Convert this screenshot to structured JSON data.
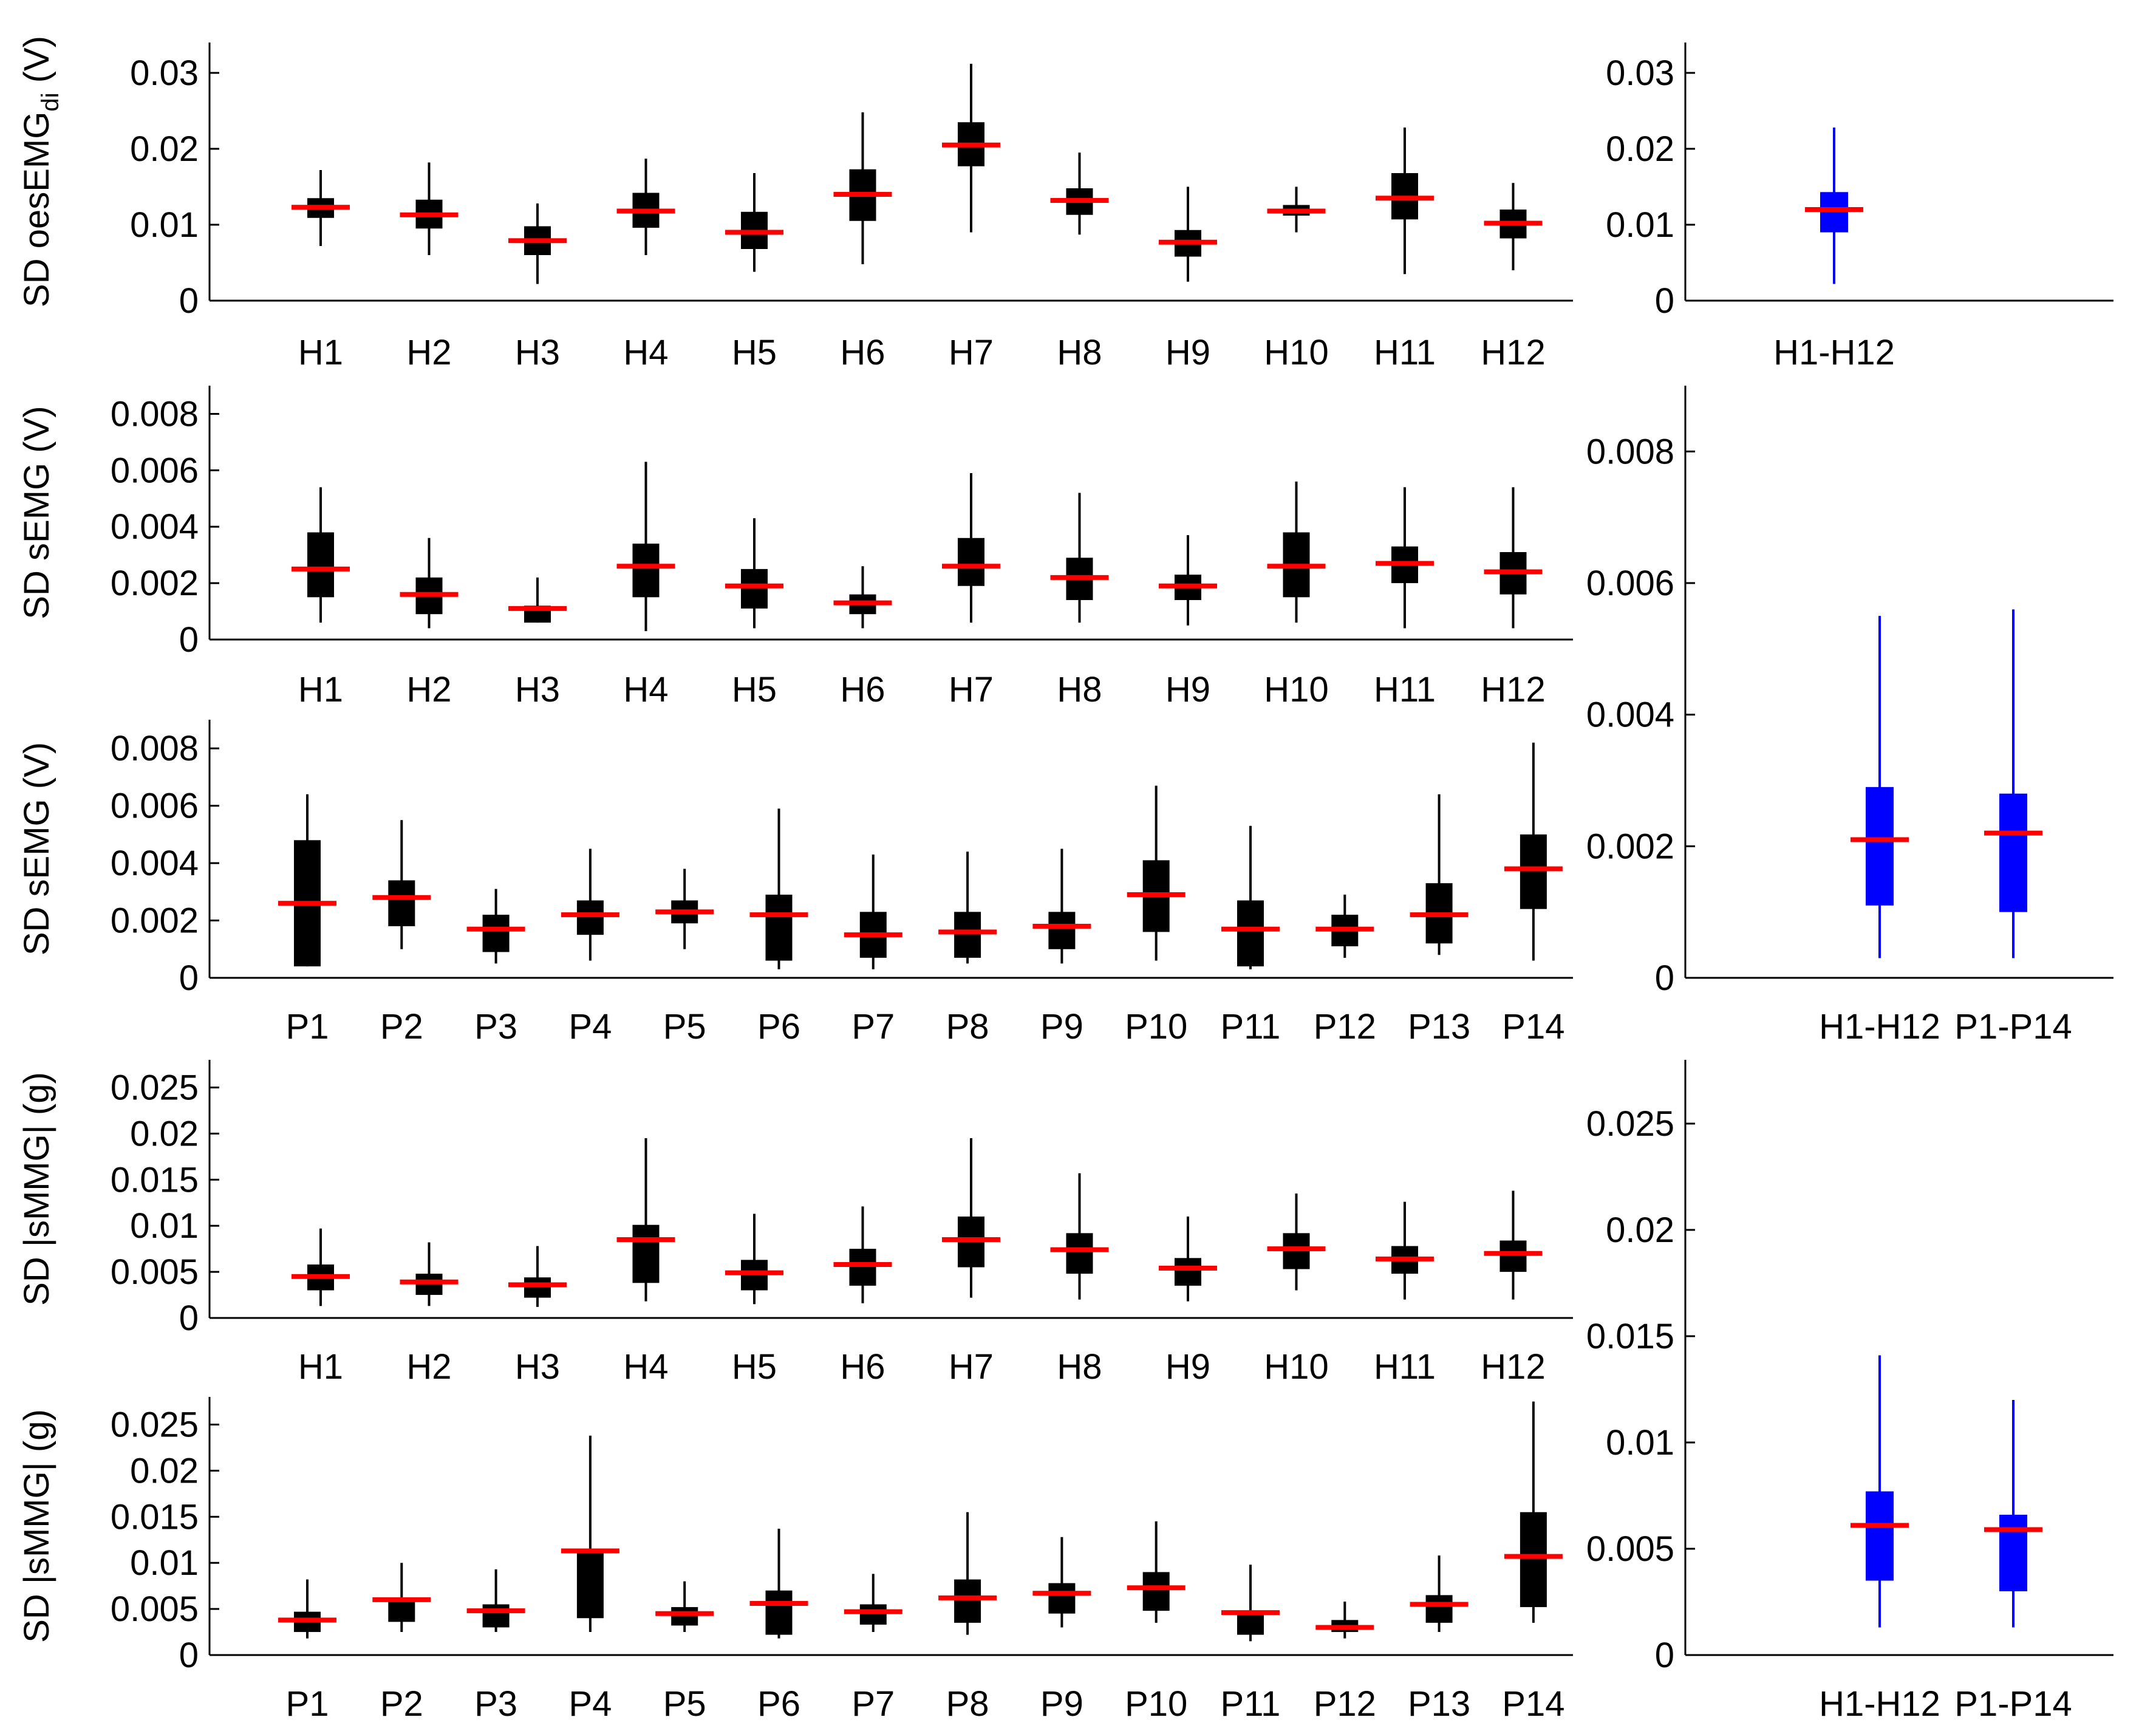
{
  "figure": {
    "description_type": "box-plot-grid",
    "colors": {
      "box": "#000000",
      "summary_box": "#0000ff",
      "median": "#ff0000",
      "axis": "#000000"
    }
  },
  "chart_data": [
    {
      "id": "a-left",
      "type": "box",
      "ylabel": "SD oesEMG",
      "ylabel_sub": "di",
      "ylabel_unit": "(V)",
      "ylim": [
        0,
        0.034
      ],
      "yticks": [
        0,
        0.01,
        0.02,
        0.03
      ],
      "ytick_labels": [
        "0",
        "0.01",
        "0.02",
        "0.03"
      ],
      "color": "#000000",
      "categories": [
        "H1",
        "H2",
        "H3",
        "H4",
        "H5",
        "H6",
        "H7",
        "H8",
        "H9",
        "H10",
        "H11",
        "H12"
      ],
      "boxes": [
        {
          "wlo": 0.0072,
          "q1": 0.0109,
          "med": 0.0123,
          "q3": 0.0135,
          "whi": 0.0172
        },
        {
          "wlo": 0.006,
          "q1": 0.0095,
          "med": 0.0113,
          "q3": 0.0133,
          "whi": 0.0182
        },
        {
          "wlo": 0.0022,
          "q1": 0.006,
          "med": 0.0079,
          "q3": 0.0098,
          "whi": 0.0128
        },
        {
          "wlo": 0.006,
          "q1": 0.0096,
          "med": 0.0118,
          "q3": 0.0142,
          "whi": 0.0187
        },
        {
          "wlo": 0.0038,
          "q1": 0.0068,
          "med": 0.009,
          "q3": 0.0117,
          "whi": 0.0168
        },
        {
          "wlo": 0.0048,
          "q1": 0.0105,
          "med": 0.014,
          "q3": 0.0173,
          "whi": 0.0248
        },
        {
          "wlo": 0.009,
          "q1": 0.0177,
          "med": 0.0205,
          "q3": 0.0235,
          "whi": 0.0312
        },
        {
          "wlo": 0.0087,
          "q1": 0.0113,
          "med": 0.0132,
          "q3": 0.0148,
          "whi": 0.0195
        },
        {
          "wlo": 0.0025,
          "q1": 0.0058,
          "med": 0.0077,
          "q3": 0.0093,
          "whi": 0.015
        },
        {
          "wlo": 0.009,
          "q1": 0.0112,
          "med": 0.0118,
          "q3": 0.0126,
          "whi": 0.015
        },
        {
          "wlo": 0.0035,
          "q1": 0.0107,
          "med": 0.0135,
          "q3": 0.0168,
          "whi": 0.0228
        },
        {
          "wlo": 0.004,
          "q1": 0.0082,
          "med": 0.0102,
          "q3": 0.012,
          "whi": 0.0155
        }
      ]
    },
    {
      "id": "a-right",
      "type": "box",
      "ylim": [
        0,
        0.034
      ],
      "yticks": [
        0,
        0.01,
        0.02,
        0.03
      ],
      "ytick_labels": [
        "0",
        "0.01",
        "0.02",
        "0.03"
      ],
      "color": "#0000ff",
      "categories": [
        "H1-H12"
      ],
      "boxes": [
        {
          "wlo": 0.0022,
          "q1": 0.009,
          "med": 0.012,
          "q3": 0.0143,
          "whi": 0.0228
        }
      ]
    },
    {
      "id": "b-left",
      "type": "box",
      "ylabel": "SD sEMG",
      "ylabel_unit": "(V)",
      "ylim": [
        0,
        0.009
      ],
      "yticks": [
        0,
        0.002,
        0.004,
        0.006,
        0.008
      ],
      "ytick_labels": [
        "0",
        "0.002",
        "0.004",
        "0.006",
        "0.008"
      ],
      "color": "#000000",
      "categories": [
        "H1",
        "H2",
        "H3",
        "H4",
        "H5",
        "H6",
        "H7",
        "H8",
        "H9",
        "H10",
        "H11",
        "H12"
      ],
      "boxes": [
        {
          "wlo": 0.0006,
          "q1": 0.0015,
          "med": 0.0025,
          "q3": 0.0038,
          "whi": 0.0054
        },
        {
          "wlo": 0.0004,
          "q1": 0.0009,
          "med": 0.0016,
          "q3": 0.0022,
          "whi": 0.0036
        },
        {
          "wlo": 0.0006,
          "q1": 0.0006,
          "med": 0.0011,
          "q3": 0.0012,
          "whi": 0.0022
        },
        {
          "wlo": 0.0003,
          "q1": 0.0015,
          "med": 0.0026,
          "q3": 0.0034,
          "whi": 0.0063
        },
        {
          "wlo": 0.0004,
          "q1": 0.0011,
          "med": 0.0019,
          "q3": 0.0025,
          "whi": 0.0043
        },
        {
          "wlo": 0.0004,
          "q1": 0.0009,
          "med": 0.0013,
          "q3": 0.0016,
          "whi": 0.0026
        },
        {
          "wlo": 0.0006,
          "q1": 0.0019,
          "med": 0.0026,
          "q3": 0.0036,
          "whi": 0.0059
        },
        {
          "wlo": 0.0006,
          "q1": 0.0014,
          "med": 0.0022,
          "q3": 0.0029,
          "whi": 0.0052
        },
        {
          "wlo": 0.0005,
          "q1": 0.0014,
          "med": 0.0019,
          "q3": 0.0023,
          "whi": 0.0037
        },
        {
          "wlo": 0.0006,
          "q1": 0.0015,
          "med": 0.0026,
          "q3": 0.0038,
          "whi": 0.0056
        },
        {
          "wlo": 0.0004,
          "q1": 0.002,
          "med": 0.0027,
          "q3": 0.0033,
          "whi": 0.0054
        },
        {
          "wlo": 0.0004,
          "q1": 0.0016,
          "med": 0.0024,
          "q3": 0.0031,
          "whi": 0.0054
        }
      ]
    },
    {
      "id": "c-left",
      "type": "box",
      "ylabel": "SD sEMG",
      "ylabel_unit": "(V)",
      "ylim": [
        0,
        0.009
      ],
      "yticks": [
        0,
        0.002,
        0.004,
        0.006,
        0.008
      ],
      "ytick_labels": [
        "0",
        "0.002",
        "0.004",
        "0.006",
        "0.008"
      ],
      "color": "#000000",
      "categories": [
        "P1",
        "P2",
        "P3",
        "P4",
        "P5",
        "P6",
        "P7",
        "P8",
        "P9",
        "P10",
        "P11",
        "P12",
        "P13",
        "P14"
      ],
      "boxes": [
        {
          "wlo": 0.0004,
          "q1": 0.0004,
          "med": 0.0026,
          "q3": 0.0048,
          "whi": 0.0064
        },
        {
          "wlo": 0.001,
          "q1": 0.0018,
          "med": 0.0028,
          "q3": 0.0034,
          "whi": 0.0055
        },
        {
          "wlo": 0.0005,
          "q1": 0.0009,
          "med": 0.0017,
          "q3": 0.0022,
          "whi": 0.0031
        },
        {
          "wlo": 0.0006,
          "q1": 0.0015,
          "med": 0.0022,
          "q3": 0.0027,
          "whi": 0.0045
        },
        {
          "wlo": 0.001,
          "q1": 0.0019,
          "med": 0.0023,
          "q3": 0.0027,
          "whi": 0.0038
        },
        {
          "wlo": 0.0003,
          "q1": 0.0006,
          "med": 0.0022,
          "q3": 0.0029,
          "whi": 0.0059
        },
        {
          "wlo": 0.0003,
          "q1": 0.0007,
          "med": 0.0015,
          "q3": 0.0023,
          "whi": 0.0043
        },
        {
          "wlo": 0.0005,
          "q1": 0.0007,
          "med": 0.0016,
          "q3": 0.0023,
          "whi": 0.0044
        },
        {
          "wlo": 0.0005,
          "q1": 0.001,
          "med": 0.0018,
          "q3": 0.0023,
          "whi": 0.0045
        },
        {
          "wlo": 0.0006,
          "q1": 0.0016,
          "med": 0.0029,
          "q3": 0.0041,
          "whi": 0.0067
        },
        {
          "wlo": 0.0003,
          "q1": 0.0004,
          "med": 0.0017,
          "q3": 0.0027,
          "whi": 0.0053
        },
        {
          "wlo": 0.0007,
          "q1": 0.0011,
          "med": 0.0017,
          "q3": 0.0022,
          "whi": 0.0029
        },
        {
          "wlo": 0.0008,
          "q1": 0.0012,
          "med": 0.0022,
          "q3": 0.0033,
          "whi": 0.0064
        },
        {
          "wlo": 0.0006,
          "q1": 0.0024,
          "med": 0.0038,
          "q3": 0.005,
          "whi": 0.0082
        }
      ]
    },
    {
      "id": "bc-right",
      "type": "box",
      "ylim": [
        0,
        0.009
      ],
      "yticks": [
        0,
        0.002,
        0.004,
        0.006,
        0.008
      ],
      "ytick_labels": [
        "0",
        "0.002",
        "0.004",
        "0.006",
        "0.008"
      ],
      "color": "#0000ff",
      "categories": [
        "H1-H12",
        "P1-P14"
      ],
      "boxes": [
        {
          "wlo": 0.0003,
          "q1": 0.0011,
          "med": 0.0021,
          "q3": 0.0029,
          "whi": 0.0055
        },
        {
          "wlo": 0.0003,
          "q1": 0.001,
          "med": 0.0022,
          "q3": 0.0028,
          "whi": 0.0056
        }
      ]
    },
    {
      "id": "d-left",
      "type": "box",
      "ylabel": "SD |sMMG|",
      "ylabel_unit": "(g)",
      "ylim": [
        0,
        0.028
      ],
      "yticks": [
        0,
        0.005,
        0.01,
        0.015,
        0.02,
        0.025
      ],
      "ytick_labels": [
        "0",
        "0.005",
        "0.01",
        "0.015",
        "0.02",
        "0.025"
      ],
      "color": "#000000",
      "categories": [
        "H1",
        "H2",
        "H3",
        "H4",
        "H5",
        "H6",
        "H7",
        "H8",
        "H9",
        "H10",
        "H11",
        "H12"
      ],
      "boxes": [
        {
          "wlo": 0.0013,
          "q1": 0.003,
          "med": 0.0045,
          "q3": 0.0058,
          "whi": 0.0097
        },
        {
          "wlo": 0.0013,
          "q1": 0.0025,
          "med": 0.0039,
          "q3": 0.0048,
          "whi": 0.0082
        },
        {
          "wlo": 0.0012,
          "q1": 0.0022,
          "med": 0.0036,
          "q3": 0.0044,
          "whi": 0.0078
        },
        {
          "wlo": 0.0018,
          "q1": 0.0038,
          "med": 0.0085,
          "q3": 0.0101,
          "whi": 0.0195
        },
        {
          "wlo": 0.0015,
          "q1": 0.003,
          "med": 0.0049,
          "q3": 0.0063,
          "whi": 0.0113
        },
        {
          "wlo": 0.0016,
          "q1": 0.0035,
          "med": 0.0058,
          "q3": 0.0075,
          "whi": 0.0121
        },
        {
          "wlo": 0.0022,
          "q1": 0.0055,
          "med": 0.0085,
          "q3": 0.011,
          "whi": 0.0195
        },
        {
          "wlo": 0.002,
          "q1": 0.0048,
          "med": 0.0074,
          "q3": 0.0092,
          "whi": 0.0157
        },
        {
          "wlo": 0.0018,
          "q1": 0.0035,
          "med": 0.0054,
          "q3": 0.0065,
          "whi": 0.011
        },
        {
          "wlo": 0.003,
          "q1": 0.0053,
          "med": 0.0075,
          "q3": 0.0092,
          "whi": 0.0135
        },
        {
          "wlo": 0.002,
          "q1": 0.0048,
          "med": 0.0064,
          "q3": 0.0078,
          "whi": 0.0126
        },
        {
          "wlo": 0.002,
          "q1": 0.005,
          "med": 0.007,
          "q3": 0.0084,
          "whi": 0.0138
        }
      ]
    },
    {
      "id": "e-left",
      "type": "box",
      "ylabel": "SD |sMMG|",
      "ylabel_unit": "(g)",
      "ylim": [
        0,
        0.028
      ],
      "yticks": [
        0,
        0.005,
        0.01,
        0.015,
        0.02,
        0.025
      ],
      "ytick_labels": [
        "0",
        "0.005",
        "0.01",
        "0.015",
        "0.02",
        "0.025"
      ],
      "color": "#000000",
      "categories": [
        "P1",
        "P2",
        "P3",
        "P4",
        "P5",
        "P6",
        "P7",
        "P8",
        "P9",
        "P10",
        "P11",
        "P12",
        "P13",
        "P14"
      ],
      "boxes": [
        {
          "wlo": 0.0018,
          "q1": 0.0025,
          "med": 0.0038,
          "q3": 0.0047,
          "whi": 0.0082
        },
        {
          "wlo": 0.0025,
          "q1": 0.0036,
          "med": 0.006,
          "q3": 0.0062,
          "whi": 0.01
        },
        {
          "wlo": 0.0025,
          "q1": 0.003,
          "med": 0.0048,
          "q3": 0.0055,
          "whi": 0.0093
        },
        {
          "wlo": 0.0025,
          "q1": 0.004,
          "med": 0.0113,
          "q3": 0.0115,
          "whi": 0.0238
        },
        {
          "wlo": 0.0025,
          "q1": 0.0032,
          "med": 0.0045,
          "q3": 0.0052,
          "whi": 0.008
        },
        {
          "wlo": 0.0018,
          "q1": 0.0022,
          "med": 0.0056,
          "q3": 0.007,
          "whi": 0.0137
        },
        {
          "wlo": 0.0025,
          "q1": 0.0033,
          "med": 0.0047,
          "q3": 0.0055,
          "whi": 0.0088
        },
        {
          "wlo": 0.0022,
          "q1": 0.0035,
          "med": 0.0062,
          "q3": 0.0082,
          "whi": 0.0155
        },
        {
          "wlo": 0.003,
          "q1": 0.0045,
          "med": 0.0067,
          "q3": 0.0078,
          "whi": 0.0128
        },
        {
          "wlo": 0.0035,
          "q1": 0.0048,
          "med": 0.0073,
          "q3": 0.009,
          "whi": 0.0145
        },
        {
          "wlo": 0.0015,
          "q1": 0.0022,
          "med": 0.0046,
          "q3": 0.0048,
          "whi": 0.0098
        },
        {
          "wlo": 0.0018,
          "q1": 0.0025,
          "med": 0.003,
          "q3": 0.0038,
          "whi": 0.0058
        },
        {
          "wlo": 0.0025,
          "q1": 0.0035,
          "med": 0.0055,
          "q3": 0.0065,
          "whi": 0.0108
        },
        {
          "wlo": 0.0035,
          "q1": 0.0052,
          "med": 0.0107,
          "q3": 0.0155,
          "whi": 0.0275
        }
      ]
    },
    {
      "id": "de-right",
      "type": "box",
      "ylim": [
        0,
        0.028
      ],
      "yticks": [
        0,
        0.005,
        0.01,
        0.015,
        0.02,
        0.025
      ],
      "ytick_labels": [
        "0",
        "0.005",
        "0.01",
        "0.015",
        "0.02",
        "0.025"
      ],
      "color": "#0000ff",
      "categories": [
        "H1-H12",
        "P1-P14"
      ],
      "boxes": [
        {
          "wlo": 0.0013,
          "q1": 0.0035,
          "med": 0.0061,
          "q3": 0.0077,
          "whi": 0.0141
        },
        {
          "wlo": 0.0013,
          "q1": 0.003,
          "med": 0.0059,
          "q3": 0.0066,
          "whi": 0.012
        }
      ]
    }
  ]
}
